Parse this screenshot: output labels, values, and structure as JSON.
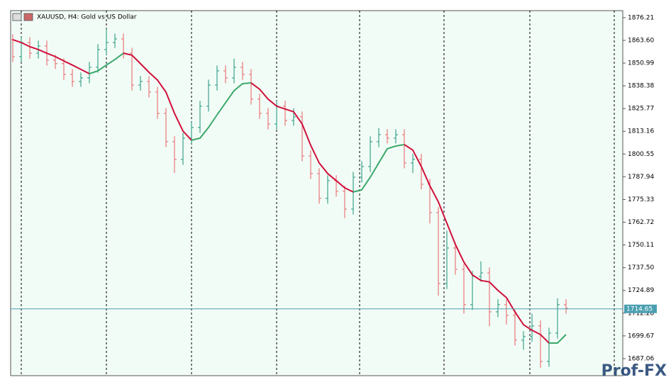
{
  "chart_data": {
    "type": "ohlc",
    "title": "XAUUSD, H4:  Gold vs US Dollar",
    "open": [
      1864.0,
      1854.6,
      1862.4,
      1856.5,
      1860.5,
      1852.6,
      1850.7,
      1844.7,
      1840.8,
      1842.8,
      1848.7,
      1858.5,
      1862.4,
      1864.4,
      1856.5,
      1838.8,
      1840.8,
      1834.9,
      1823.1,
      1807.4,
      1797.6,
      1809.4,
      1815.3,
      1827.1,
      1838.8,
      1846.7,
      1842.8,
      1848.7,
      1844.7,
      1831.0,
      1823.1,
      1817.2,
      1827.1,
      1819.2,
      1821.2,
      1799.5,
      1789.7,
      1776.0,
      1785.8,
      1779.9,
      1770.0,
      1787.7,
      1793.6,
      1807.4,
      1811.3,
      1809.4,
      1811.3,
      1795.6,
      1797.6,
      1783.8,
      1768.1,
      1728.7,
      1748.4,
      1736.6,
      1717.0,
      1732.7,
      1734.6,
      1713.0,
      1717.0,
      1711.1,
      1697.3,
      1699.3,
      1705.2,
      1685.5,
      1701.2,
      1717.0
    ],
    "high": [
      1867.0,
      1865.4,
      1865.4,
      1863.5,
      1863.5,
      1855.6,
      1853.7,
      1847.7,
      1845.8,
      1851.7,
      1861.5,
      1870.0,
      1867.4,
      1867.4,
      1859.5,
      1843.8,
      1843.8,
      1837.9,
      1826.1,
      1810.4,
      1812.4,
      1818.3,
      1830.1,
      1841.8,
      1849.7,
      1849.7,
      1853.5,
      1851.7,
      1847.7,
      1834.0,
      1826.1,
      1830.1,
      1830.1,
      1826.0,
      1824.2,
      1802.5,
      1792.7,
      1788.8,
      1788.8,
      1782.9,
      1790.7,
      1796.6,
      1810.4,
      1815.0,
      1814.3,
      1814.3,
      1814.3,
      1800.6,
      1800.6,
      1786.8,
      1771.1,
      1758.0,
      1751.4,
      1739.6,
      1735.7,
      1741.0,
      1737.6,
      1720.0,
      1720.0,
      1714.1,
      1702.3,
      1712.0,
      1708.2,
      1704.2,
      1720.5,
      1720.0
    ],
    "low": [
      1851.6,
      1851.6,
      1853.5,
      1853.5,
      1849.6,
      1847.7,
      1841.7,
      1837.8,
      1837.8,
      1839.8,
      1845.7,
      1855.5,
      1859.4,
      1853.5,
      1835.8,
      1835.8,
      1831.9,
      1820.1,
      1804.4,
      1790.0,
      1794.6,
      1806.4,
      1812.3,
      1824.1,
      1835.8,
      1839.8,
      1839.8,
      1841.7,
      1828.0,
      1820.1,
      1814.2,
      1814.2,
      1816.2,
      1816.2,
      1796.5,
      1786.7,
      1773.0,
      1773.0,
      1776.9,
      1765.0,
      1767.0,
      1784.7,
      1790.6,
      1804.4,
      1806.4,
      1806.4,
      1792.6,
      1790.0,
      1780.8,
      1762.0,
      1722.0,
      1725.7,
      1733.6,
      1712.0,
      1714.0,
      1729.7,
      1705.0,
      1710.0,
      1706.0,
      1694.3,
      1692.0,
      1696.3,
      1682.0,
      1682.5,
      1698.2,
      1712.0
    ],
    "close": [
      1854.6,
      1862.4,
      1856.5,
      1860.5,
      1852.6,
      1850.7,
      1844.7,
      1840.8,
      1842.8,
      1848.7,
      1858.5,
      1862.4,
      1864.4,
      1856.5,
      1838.8,
      1840.8,
      1834.9,
      1823.1,
      1807.4,
      1797.6,
      1809.4,
      1815.3,
      1827.1,
      1838.8,
      1846.7,
      1842.8,
      1848.7,
      1844.7,
      1831.0,
      1823.1,
      1817.2,
      1827.1,
      1819.2,
      1821.2,
      1799.5,
      1789.7,
      1776.0,
      1785.8,
      1779.9,
      1770.0,
      1787.7,
      1793.6,
      1807.4,
      1811.3,
      1809.4,
      1811.3,
      1795.6,
      1797.6,
      1783.8,
      1768.1,
      1728.7,
      1748.4,
      1736.6,
      1717.0,
      1732.7,
      1734.6,
      1713.0,
      1717.0,
      1711.1,
      1697.3,
      1699.3,
      1705.2,
      1685.5,
      1701.2,
      1717.0,
      1715.0
    ],
    "up_color": "#3aa38b",
    "down_color": "#e8787a",
    "ma": {
      "values": [
        1864.0,
        1862.4,
        1860.1,
        1858.5,
        1856.5,
        1854.6,
        1852.2,
        1849.9,
        1847.5,
        1845.1,
        1846.7,
        1849.9,
        1853.0,
        1856.5,
        1855.4,
        1850.7,
        1845.9,
        1841.6,
        1834.9,
        1823.1,
        1813.3,
        1808.2,
        1809.4,
        1815.3,
        1822.3,
        1829.0,
        1835.7,
        1839.6,
        1840.0,
        1836.5,
        1831.0,
        1827.1,
        1825.5,
        1824.0,
        1817.2,
        1805.4,
        1795.6,
        1789.7,
        1785.8,
        1781.8,
        1779.5,
        1780.7,
        1787.7,
        1795.6,
        1803.5,
        1805.0,
        1805.8,
        1802.7,
        1793.6,
        1783.0,
        1774.0,
        1762.2,
        1750.4,
        1740.6,
        1733.5,
        1730.4,
        1729.6,
        1724.9,
        1720.9,
        1713.0,
        1705.9,
        1702.8,
        1700.4,
        1695.7,
        1695.7,
        1700.4
      ],
      "rising_color": "#3aa86a",
      "falling_color": "#d0103a"
    },
    "current_price": 1714.65,
    "current_price_color": "#4a9fb0",
    "ylim": [
      1677.6,
      1880.1
    ],
    "yticks": [
      1876.21,
      {
        "value": 1863.6,
        "label": "1863.60"
      },
      1850.99,
      1838.38,
      1825.77,
      1813.16,
      1800.55,
      1787.94,
      1775.33,
      1762.72,
      1750.11,
      {
        "value": 1737.5,
        "label": "1737.50"
      },
      1724.89,
      1712.28,
      1699.67,
      1687.06
    ],
    "watermark": "Prof-FX"
  }
}
